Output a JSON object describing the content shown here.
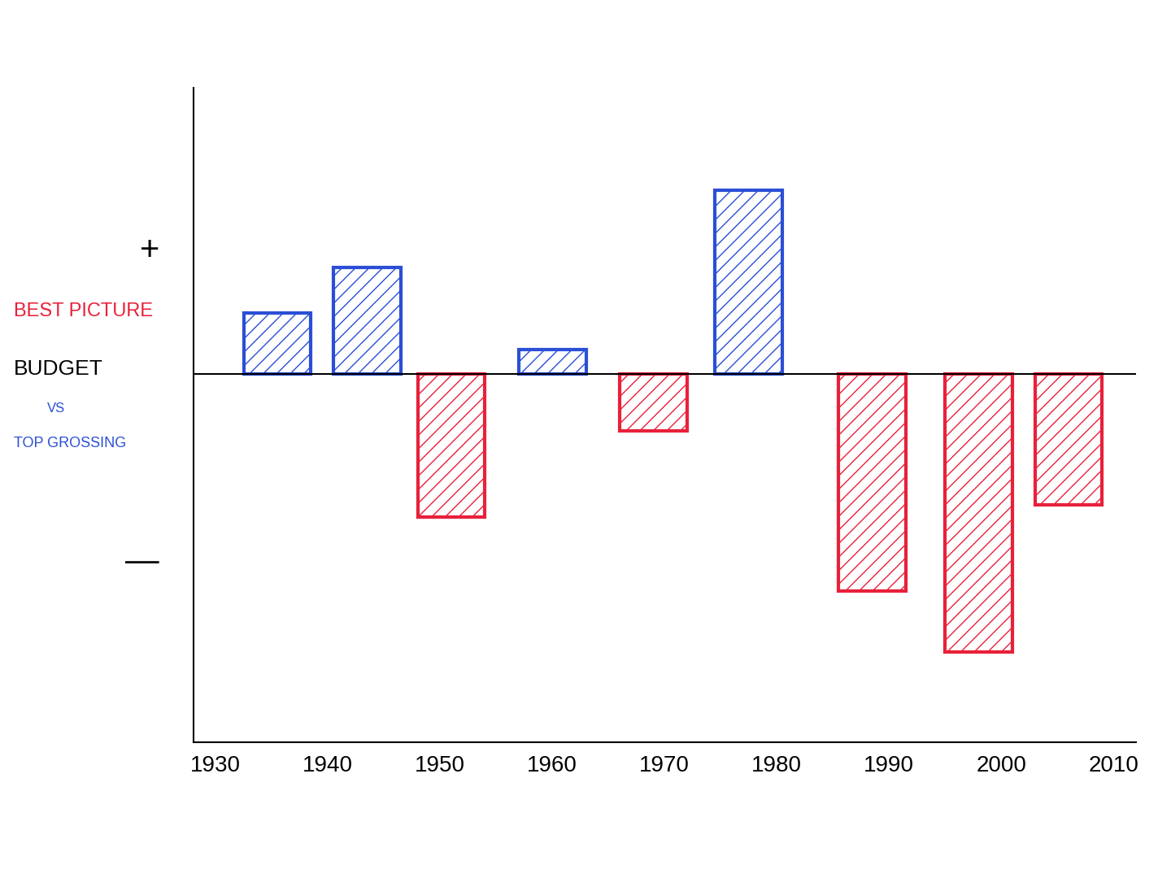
{
  "chart_data": {
    "type": "bar",
    "annotations": [
      "BEST PICTURE",
      "BUDGET",
      "VS",
      "TOP GROSSING"
    ],
    "x": [
      1935.5,
      1943.5,
      1951,
      1960,
      1969,
      1977.5,
      1988.5,
      1998,
      2006
    ],
    "values": [
      0.75,
      1.3,
      -1.75,
      0.3,
      -0.7,
      2.25,
      -2.65,
      -3.4,
      -1.6
    ],
    "colors": [
      "#2a4fd6",
      "#2a4fd6",
      "#e8213a",
      "#2a4fd6",
      "#e8213a",
      "#2a4fd6",
      "#e8213a",
      "#e8213a",
      "#e8213a"
    ],
    "xlim": [
      1928,
      2012
    ],
    "xticks": [
      1930,
      1940,
      1950,
      1960,
      1970,
      1980,
      1990,
      2000,
      2010
    ],
    "ylim": [
      -4.5,
      3.5
    ],
    "yticks": [
      {
        "value": 1.55,
        "label": "+"
      },
      {
        "value": -2.25,
        "label": "—"
      }
    ],
    "grid": false,
    "tick_labels": true
  }
}
